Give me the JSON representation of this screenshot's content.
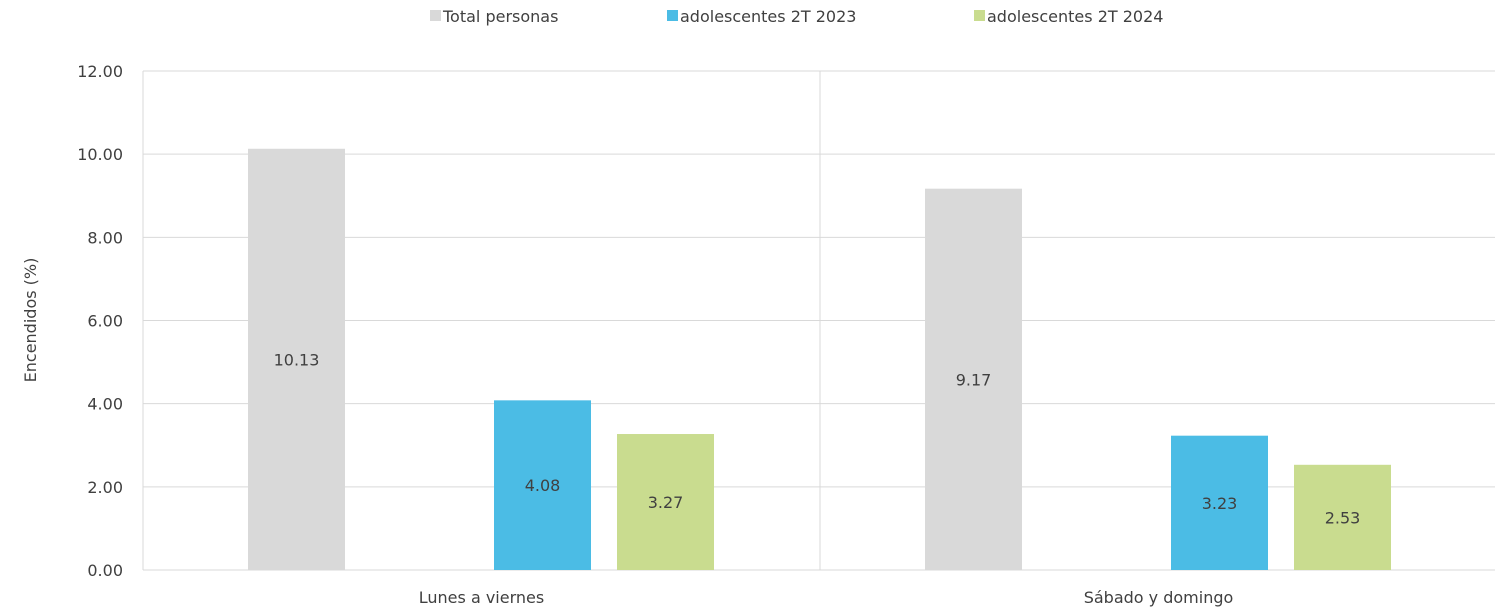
{
  "chart_data": {
    "type": "bar",
    "categories": [
      "Lunes a viernes",
      "Sábado y domingo"
    ],
    "series": [
      {
        "name": "Total personas",
        "values": [
          10.13,
          9.17
        ],
        "labels": [
          "10.13",
          "9.17"
        ],
        "color": "#d9d9d9"
      },
      {
        "name": "adolescentes 2T 2023",
        "values": [
          4.08,
          3.23
        ],
        "labels": [
          "4.08",
          "3.23"
        ],
        "color": "#4bbce5"
      },
      {
        "name": "adolescentes 2T 2024",
        "values": [
          3.27,
          2.53
        ],
        "labels": [
          "3.27",
          "2.53"
        ],
        "color": "#c9dc8f"
      }
    ],
    "ylabel": "Encendidos (%)",
    "xlabel": "",
    "ylim": [
      0,
      12
    ],
    "yticks": [
      "0.00",
      "2.00",
      "4.00",
      "6.00",
      "8.00",
      "10.00",
      "12.00"
    ],
    "grid": true,
    "legend_position": "top-center"
  }
}
